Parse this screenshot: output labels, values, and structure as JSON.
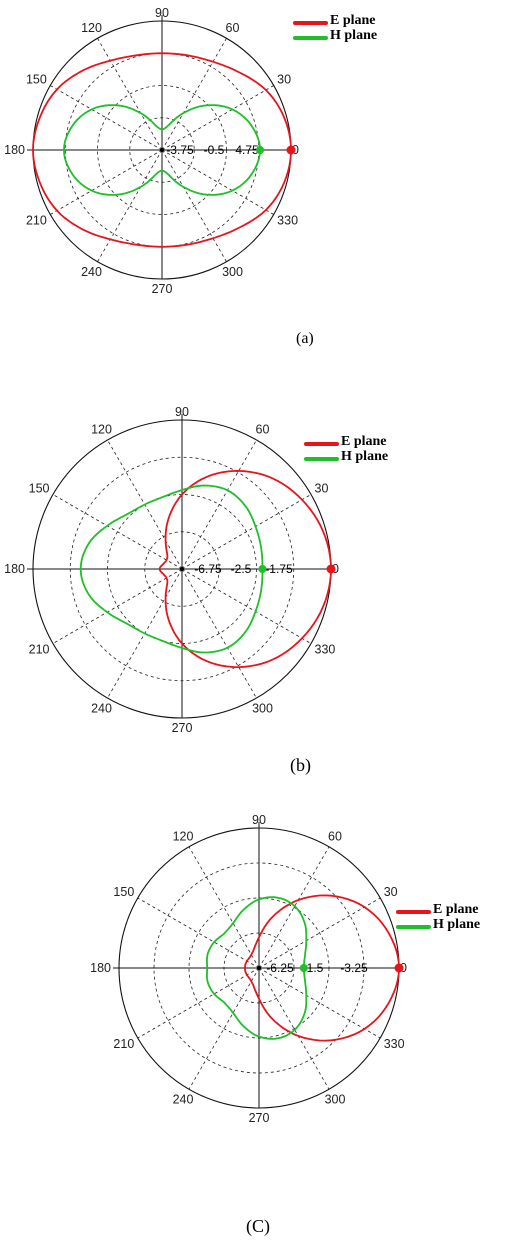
{
  "chart_data": [
    {
      "type": "polar-line",
      "panel_label": "(a)",
      "angle_ticks": [
        "0",
        "30",
        "60",
        "90",
        "120",
        "150",
        "180",
        "210",
        "240",
        "270",
        "300",
        "330"
      ],
      "radial_ticks": [
        "-3.75",
        "-0.5",
        "4.75",
        "0"
      ],
      "legend": [
        {
          "name": "E plane",
          "color": "#e8141c"
        },
        {
          "name": "H plane",
          "color": "#1fbf2a"
        }
      ],
      "legend_placement": "top-right",
      "grid": true,
      "theta_deg": [
        0,
        15,
        30,
        45,
        60,
        75,
        90,
        105,
        120,
        135,
        150,
        165,
        180,
        195,
        210,
        225,
        240,
        255,
        270,
        285,
        300,
        315,
        330,
        345
      ],
      "series": [
        {
          "name": "E plane",
          "r": [
            1.0,
            0.98,
            0.93,
            0.85,
            0.79,
            0.76,
            0.75,
            0.76,
            0.8,
            0.87,
            0.94,
            0.98,
            1.0,
            0.98,
            0.94,
            0.87,
            0.8,
            0.76,
            0.75,
            0.76,
            0.79,
            0.85,
            0.93,
            0.98
          ]
        },
        {
          "name": "H plane",
          "r": [
            0.76,
            0.72,
            0.63,
            0.49,
            0.33,
            0.2,
            0.16,
            0.2,
            0.33,
            0.49,
            0.63,
            0.72,
            0.76,
            0.72,
            0.63,
            0.49,
            0.33,
            0.2,
            0.16,
            0.2,
            0.33,
            0.49,
            0.63,
            0.72
          ]
        }
      ]
    },
    {
      "type": "polar-line",
      "panel_label": "(b)",
      "angle_ticks": [
        "0",
        "30",
        "60",
        "90",
        "120",
        "150",
        "180",
        "210",
        "240",
        "270",
        "300",
        "330"
      ],
      "radial_ticks": [
        "-6.75",
        "-2.5",
        "-1.75",
        "0"
      ],
      "legend": [
        {
          "name": "E plane",
          "color": "#e8141c"
        },
        {
          "name": "H plane",
          "color": "#1fbf2a"
        }
      ],
      "legend_placement": "top-right",
      "grid": true,
      "theta_deg": [
        0,
        15,
        30,
        45,
        60,
        75,
        90,
        105,
        120,
        135,
        150,
        165,
        180,
        195,
        210,
        225,
        240,
        255,
        270,
        285,
        300,
        315,
        330,
        345
      ],
      "series": [
        {
          "name": "E plane",
          "r": [
            1.0,
            0.98,
            0.93,
            0.86,
            0.76,
            0.64,
            0.5,
            0.35,
            0.22,
            0.14,
            0.12,
            0.13,
            0.15,
            0.13,
            0.12,
            0.14,
            0.22,
            0.35,
            0.5,
            0.64,
            0.76,
            0.86,
            0.93,
            0.98
          ]
        },
        {
          "name": "H plane",
          "r": [
            0.54,
            0.55,
            0.57,
            0.6,
            0.61,
            0.58,
            0.53,
            0.5,
            0.5,
            0.52,
            0.58,
            0.65,
            0.68,
            0.65,
            0.58,
            0.52,
            0.5,
            0.5,
            0.53,
            0.58,
            0.61,
            0.6,
            0.57,
            0.55
          ]
        }
      ]
    },
    {
      "type": "polar-line",
      "panel_label": "(C)",
      "angle_ticks": [
        "0",
        "30",
        "60",
        "90",
        "120",
        "150",
        "180",
        "210",
        "240",
        "270",
        "300",
        "330"
      ],
      "radial_ticks": [
        "-6.25",
        "-1.5",
        "-3.25",
        "0"
      ],
      "legend": [
        {
          "name": "E plane",
          "color": "#e8141c"
        },
        {
          "name": "H plane",
          "color": "#1fbf2a"
        }
      ],
      "legend_placement": "top-right",
      "grid": true,
      "theta_deg": [
        0,
        15,
        30,
        45,
        60,
        75,
        90,
        105,
        120,
        135,
        150,
        165,
        180,
        195,
        210,
        225,
        240,
        255,
        270,
        285,
        300,
        315,
        330,
        345
      ],
      "series": [
        {
          "name": "E plane",
          "r": [
            1.0,
            0.96,
            0.87,
            0.73,
            0.56,
            0.38,
            0.22,
            0.14,
            0.11,
            0.1,
            0.1,
            0.1,
            0.1,
            0.1,
            0.1,
            0.1,
            0.11,
            0.14,
            0.22,
            0.38,
            0.56,
            0.73,
            0.87,
            0.96
          ]
        },
        {
          "name": "H plane",
          "r": [
            0.32,
            0.34,
            0.39,
            0.46,
            0.51,
            0.52,
            0.49,
            0.43,
            0.37,
            0.35,
            0.37,
            0.38,
            0.37,
            0.38,
            0.37,
            0.35,
            0.37,
            0.43,
            0.49,
            0.52,
            0.51,
            0.46,
            0.39,
            0.34
          ]
        }
      ]
    }
  ]
}
